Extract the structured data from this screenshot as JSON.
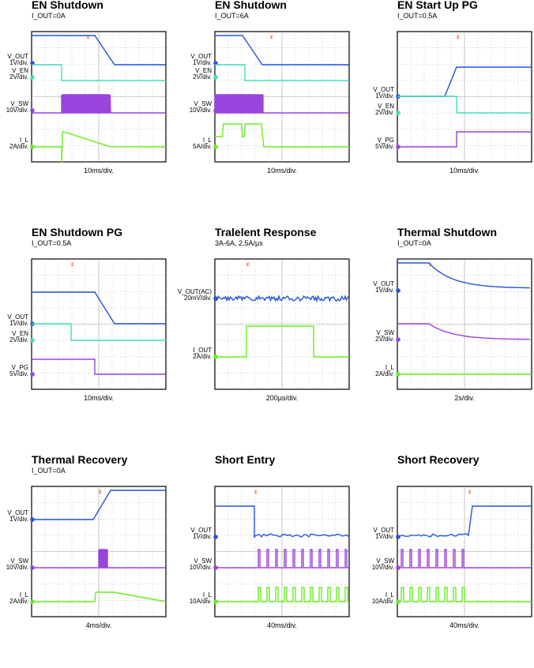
{
  "panels": [
    {
      "title": "EN Shutdown",
      "subtitle": "I_OUT=0A",
      "timebase": "10ms/div.",
      "channels": [
        {
          "label": "V_OUT",
          "scale": "1V/div.",
          "color": "#2255dd",
          "mark": "1"
        },
        {
          "label": "V_EN",
          "scale": "2V/div.",
          "color": "#44ddbb",
          "mark": "3"
        },
        {
          "label": "V_SW",
          "scale": "10V/div.",
          "color": "#9944dd",
          "mark": "2"
        },
        {
          "label": "I_L",
          "scale": "2A/div.",
          "color": "#66ee22",
          "mark": "4"
        }
      ]
    },
    {
      "title": "EN Shutdown",
      "subtitle": "I_OUT=6A",
      "timebase": "10ms/div.",
      "channels": [
        {
          "label": "V_OUT",
          "scale": "1V/div.",
          "color": "#2255dd",
          "mark": "1"
        },
        {
          "label": "V_EN",
          "scale": "2V/div.",
          "color": "#44ddbb",
          "mark": "3"
        },
        {
          "label": "V_SW",
          "scale": "10V/div.",
          "color": "#9944dd",
          "mark": "2"
        },
        {
          "label": "I_L",
          "scale": "5A/div.",
          "color": "#66ee22",
          "mark": "4"
        }
      ]
    },
    {
      "title": "EN Start Up PG",
      "subtitle": "I_OUT=0.5A",
      "timebase": "10ms/div.",
      "channels": [
        {
          "label": "V_OUT",
          "scale": "1V/div.",
          "color": "#2255dd",
          "mark": "1"
        },
        {
          "label": "V_EN",
          "scale": "2V/div.",
          "color": "#44ddbb",
          "mark": "3"
        },
        {
          "label": "V_PG",
          "scale": "5V/div.",
          "color": "#9944dd",
          "mark": "2"
        }
      ]
    },
    {
      "title": "EN Shutdown PG",
      "subtitle": "I_OUT=0.5A",
      "timebase": "10ms/div.",
      "channels": [
        {
          "label": "V_OUT",
          "scale": "1V/div.",
          "color": "#2255dd",
          "mark": "1"
        },
        {
          "label": "V_EN",
          "scale": "2V/div.",
          "color": "#44ddbb",
          "mark": "3"
        },
        {
          "label": "V_PG",
          "scale": "5V/div.",
          "color": "#9944dd",
          "mark": "2"
        }
      ]
    },
    {
      "title": "Tralelent Response",
      "subtitle": "3A-6A, 2.5A/µs",
      "timebase": "200µs/div.",
      "channels": [
        {
          "label": "V_OUT(AC)",
          "scale": "20mV/div.",
          "color": "#2255dd",
          "mark": "1"
        },
        {
          "label": "I_OUT",
          "scale": "2A/div.",
          "color": "#66ee22",
          "mark": "4"
        }
      ]
    },
    {
      "title": "Thermal Shutdown",
      "subtitle": "I_OUT=0A",
      "timebase": "2s/div.",
      "channels": [
        {
          "label": "V_OUT",
          "scale": "1V/div.",
          "color": "#2255dd",
          "mark": "1"
        },
        {
          "label": "V_SW",
          "scale": "2V/div.",
          "color": "#9944dd",
          "mark": "2"
        },
        {
          "label": "I_L",
          "scale": "2A/div.",
          "color": "#66ee22",
          "mark": "4"
        }
      ]
    },
    {
      "title": "Thermal Recovery",
      "subtitle": "I_OUT=0A",
      "timebase": "4ms/div.",
      "channels": [
        {
          "label": "V_OUT",
          "scale": "1V/div.",
          "color": "#2255dd",
          "mark": "1"
        },
        {
          "label": "V_SW",
          "scale": "10V/div.",
          "color": "#9944dd",
          "mark": "2"
        },
        {
          "label": "I_L",
          "scale": "2A/div.",
          "color": "#66ee22",
          "mark": "4"
        }
      ]
    },
    {
      "title": "Short Entry",
      "subtitle": "",
      "timebase": "40ms/div.",
      "channels": [
        {
          "label": "V_OUT",
          "scale": "1V/div.",
          "color": "#2255dd",
          "mark": "1"
        },
        {
          "label": "V_SW",
          "scale": "10V/div.",
          "color": "#9944dd",
          "mark": "2"
        },
        {
          "label": "I_L",
          "scale": "10A/div.",
          "color": "#66ee22",
          "mark": "4"
        }
      ]
    },
    {
      "title": "Short Recovery",
      "subtitle": "",
      "timebase": "40ms/div.",
      "channels": [
        {
          "label": "V_OUT",
          "scale": "1V/div.",
          "color": "#2255dd",
          "mark": "1"
        },
        {
          "label": "V_SW",
          "scale": "10V/div.",
          "color": "#9944dd",
          "mark": "2"
        },
        {
          "label": "I_L",
          "scale": "10A/div.",
          "color": "#66ee22",
          "mark": "4"
        }
      ]
    }
  ],
  "chart_data": {
    "type": "line",
    "description_grid": "3x3 oscilloscope captures, 10x8 division graticule each, trigger marker in orange",
    "trigger_color": "#ff6622"
  }
}
